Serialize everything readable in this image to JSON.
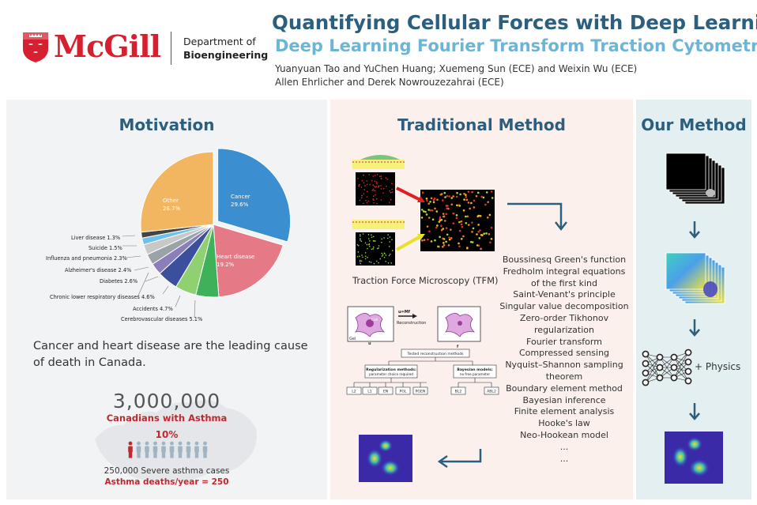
{
  "header": {
    "logo_text": "McGill",
    "department_line1": "Department of",
    "department_line2": "Bioengineering",
    "title": "Quantifying Cellular Forces with Deep Learning",
    "subtitle": "Deep Learning Fourier Transform Traction Cytometry",
    "authors_line1": "Yuanyuan Tao and YuChen Huang; Xuemeng Sun (ECE) and Weixin Wu (ECE)",
    "authors_line2": "Allen Ehrlicher and Derek Nowrouzezahrai (ECE)"
  },
  "motivation": {
    "heading": "Motivation",
    "caption": "Cancer and heart disease are the leading cause of death in Canada.",
    "asthma_count": "3,000,000",
    "asthma_label": "Canadians with Asthma",
    "asthma_percent": "10%",
    "severe_cases": "250,000 Severe asthma cases",
    "asthma_deaths": "Asthma deaths/year = 250",
    "people_count": 10,
    "people_highlighted": 1
  },
  "chart_data": {
    "type": "pie",
    "slices": [
      {
        "label": "Cancer",
        "value": 29.6,
        "color": "#3b8fd0",
        "exploded": true
      },
      {
        "label": "Heart disease",
        "value": 19.2,
        "color": "#e57a86",
        "exploded": false
      },
      {
        "label": "Cerebrovascular diseases",
        "value": 5.1,
        "color": "#3fb15b",
        "exploded": false
      },
      {
        "label": "Accidents",
        "value": 4.7,
        "color": "#8fd170",
        "exploded": false
      },
      {
        "label": "Chronic lower respiratory diseases",
        "value": 4.6,
        "color": "#3b4f9d",
        "exploded": false
      },
      {
        "label": "Diabetes",
        "value": 2.6,
        "color": "#8a7fbb",
        "exploded": false
      },
      {
        "label": "Alzheimer's disease",
        "value": 2.4,
        "color": "#9aa3a8",
        "exploded": false
      },
      {
        "label": "Influenza and pneumonia",
        "value": 2.3,
        "color": "#c8c8c8",
        "exploded": false
      },
      {
        "label": "Suicide",
        "value": 1.5,
        "color": "#6ec2ea",
        "exploded": false
      },
      {
        "label": "Liver disease",
        "value": 1.3,
        "color": "#444444",
        "exploded": false
      },
      {
        "label": "Other",
        "value": 26.7,
        "color": "#f2b660",
        "exploded": false
      }
    ],
    "label_texts": [
      "Cancer",
      "29.6%",
      "Heart disease",
      "19.2%",
      "Other",
      "26.7%",
      "Cerebrovascular diseases 5.1%",
      "Accidents 4.7%",
      "Chronic lower respiratory diseases 4.6%",
      "Diabetes 2.6%",
      "Alzheimer's disease 2.4%",
      "Influenza and pneumonia 2.3%",
      "Suicide 1.5%",
      "Liver disease 1.3%"
    ]
  },
  "traditional": {
    "heading": "Traditional Method",
    "tfm_caption": "Traction Force Microscopy (TFM)",
    "diagram": {
      "equation": "u=Mf",
      "reconstruction": "Reconstruction",
      "cell": "Cell",
      "gel": "Gel",
      "u": "u",
      "f": "f",
      "root": "Tested reconstruction methods",
      "reg_title": "Regularization methods:",
      "reg_sub": "parameter choice required",
      "bayes_title": "Bayesian models:",
      "bayes_sub": "no free parameter",
      "leaves": [
        "L2",
        "L1",
        "EN",
        "PGL",
        "PGEN",
        "BL2",
        "ABL2"
      ]
    },
    "methods": [
      "Boussinesq Green's function",
      "Fredholm integral equations",
      "of the first kind",
      "Saint-Venant's principle",
      "Singular value decomposition",
      "Zero-order Tikhonov",
      "regularization",
      "Fourier transform",
      "Compressed sensing",
      "Nyquist–Shannon sampling",
      "theorem",
      "Boundary element method",
      "Bayesian inference",
      "Finite element analysis",
      "Hooke's law",
      "Neo-Hookean model",
      "...",
      "..."
    ]
  },
  "ours": {
    "heading": "Our Method",
    "plus_physics": "+  Physics"
  },
  "colors": {
    "title": "#2b5f7d",
    "subtitle": "#6db5d5",
    "accent_red": "#c0282d",
    "mcgill_red": "#d6202f"
  }
}
